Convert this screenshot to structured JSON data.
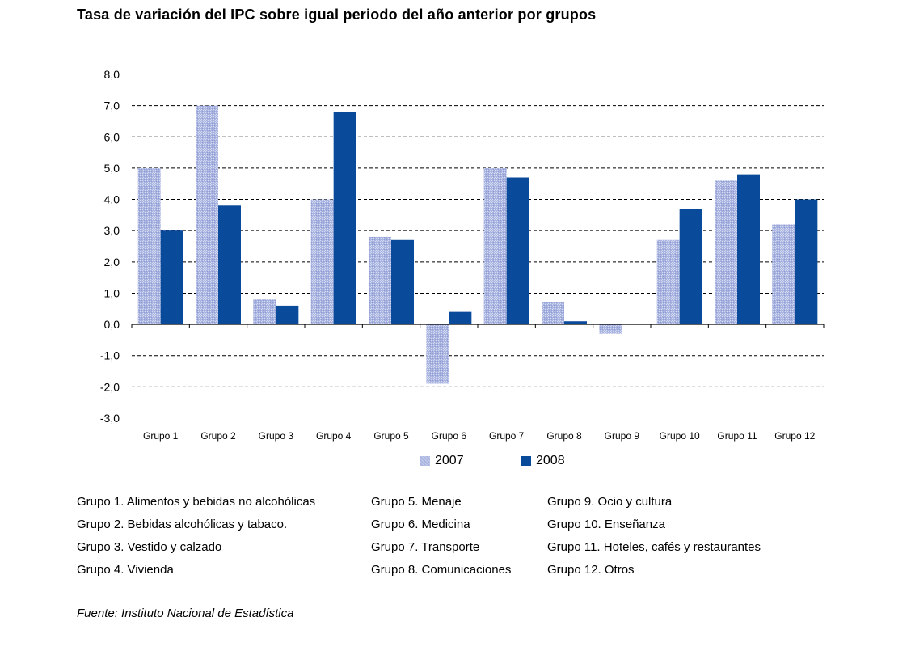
{
  "title": "Tasa de variación del IPC sobre igual periodo del año anterior por grupos",
  "colors": {
    "y2007": "#a9b4e0",
    "y2008": "#0a4a9a",
    "grid": "#000000"
  },
  "chart_data": {
    "type": "bar",
    "title": "Tasa de variación del IPC sobre igual periodo del año anterior por grupos",
    "categories": [
      "Grupo 1",
      "Grupo 2",
      "Grupo 3",
      "Grupo 4",
      "Grupo 5",
      "Grupo 6",
      "Grupo 7",
      "Grupo 8",
      "Grupo 9",
      "Grupo 10",
      "Grupo 11",
      "Grupo 12"
    ],
    "series": [
      {
        "name": "2007",
        "values": [
          5.0,
          7.0,
          0.8,
          4.0,
          2.8,
          -1.9,
          5.0,
          0.7,
          -0.3,
          2.7,
          4.6,
          3.2
        ]
      },
      {
        "name": "2008",
        "values": [
          3.0,
          3.8,
          0.6,
          6.8,
          2.7,
          0.4,
          4.7,
          0.1,
          0.0,
          3.7,
          4.8,
          4.0
        ]
      }
    ],
    "ylim": [
      -3.0,
      8.0
    ],
    "yticks": [
      "8,0",
      "7,0",
      "6,0",
      "5,0",
      "4,0",
      "3,0",
      "2,0",
      "1,0",
      "0,0",
      "-1,0",
      "-2,0",
      "-3,0"
    ],
    "grid": true,
    "legend_position": "bottom"
  },
  "legend": [
    "2007",
    "2008"
  ],
  "notes": {
    "col1": [
      "Grupo 1. Alimentos y bebidas no alcohólicas",
      "Grupo 2. Bebidas alcohólicas y  tabaco.",
      "Grupo 3. Vestido y calzado",
      "Grupo 4. Vivienda"
    ],
    "col2": [
      "Grupo 5. Menaje",
      "Grupo 6. Medicina",
      "Grupo 7. Transporte",
      "Grupo 8. Comunicaciones"
    ],
    "col3": [
      "Grupo 9. Ocio y cultura",
      "Grupo 10. Enseñanza",
      "Grupo 11. Hoteles, cafés y restaurantes",
      "Grupo 12. Otros"
    ]
  },
  "source": "Fuente: Instituto Nacional de Estadística"
}
